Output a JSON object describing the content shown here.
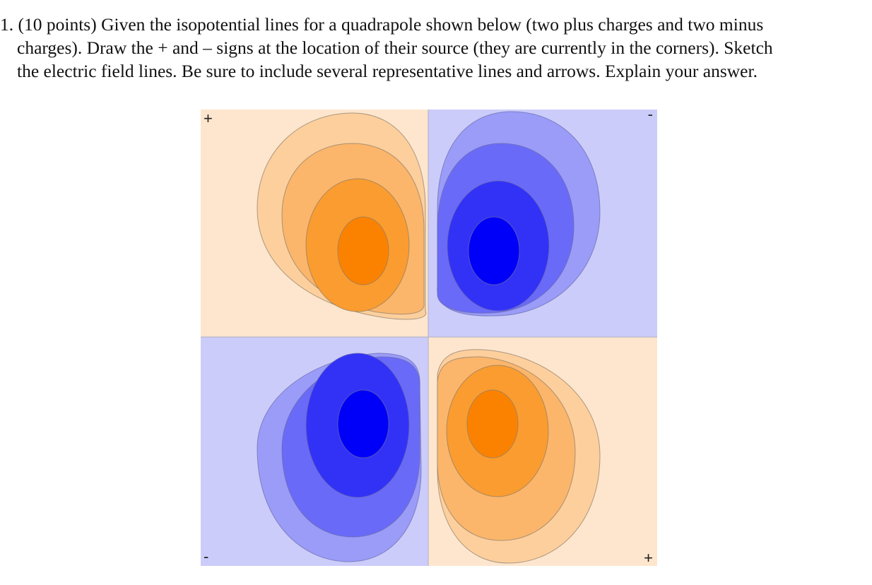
{
  "problem": {
    "line1": "1. (10 points) Given the isopotential lines for a quadrapole shown below (two plus charges and two minus",
    "line2": "charges). Draw the + and – signs at the location of their source (they are currently in the corners). Sketch",
    "line3": "the electric field lines. Be sure to include several representative lines and arrows. Explain your answer."
  },
  "figure": {
    "corner_labels": {
      "top_left": "+",
      "top_right": "-",
      "bottom_left": "-",
      "bottom_right": "+"
    },
    "colors": {
      "positive_background": "#fde6cd",
      "negative_background": "#ccccfb",
      "positive_levels": [
        "#fccf9d",
        "#fbb66b",
        "#fa9c2f",
        "#fb8200"
      ],
      "negative_levels": [
        "#9a9cf8",
        "#6a6af8",
        "#3232f6",
        "#0000f8"
      ]
    }
  }
}
